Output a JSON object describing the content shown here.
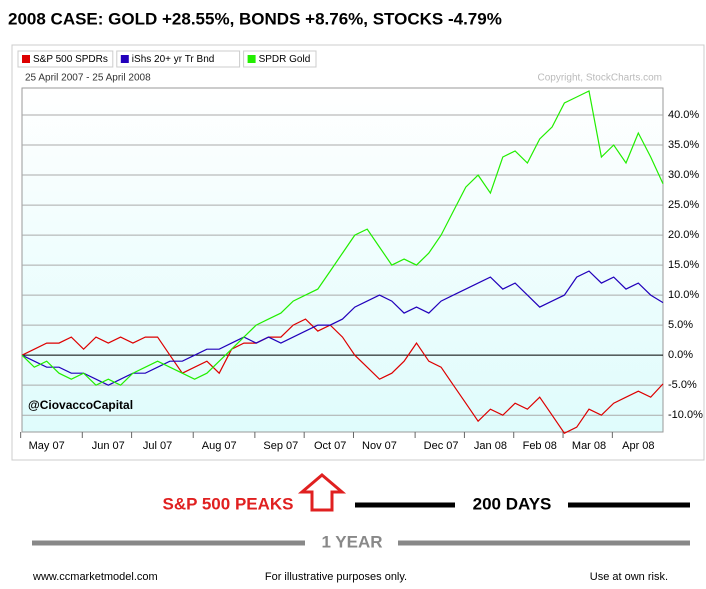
{
  "chart_data": {
    "type": "line",
    "title": "2008 CASE:   GOLD +28.55%, BONDS +8.76%, STOCKS -4.79%",
    "subtitle": "25 April 2007 - 25 April 2008",
    "credit": "Copyright, StockCharts.com",
    "watermark": "@CiovaccoCapital",
    "annotations": [
      "S&P 500 PEAKS",
      "200 DAYS",
      "1 YEAR"
    ],
    "footer": [
      "www.ccmarketmodel.com",
      "For illustrative purposes only.",
      "Use at own risk."
    ],
    "categories": [
      null,
      null,
      "May 07",
      null,
      null,
      null,
      null,
      "Jun 07",
      null,
      null,
      null,
      "Jul 07",
      null,
      null,
      null,
      null,
      "Aug 07",
      null,
      null,
      null,
      null,
      "Sep 07",
      null,
      null,
      null,
      "Oct 07",
      null,
      null,
      null,
      "Nov 07",
      null,
      null,
      null,
      null,
      "Dec 07",
      null,
      null,
      null,
      "Jan 08",
      null,
      null,
      null,
      "Feb 08",
      null,
      null,
      null,
      "Mar 08",
      null,
      null,
      null,
      "Apr 08",
      null,
      null
    ],
    "series": [
      {
        "name": "S&P 500 SPDRs",
        "color": "#dd0000",
        "values": [
          0,
          1,
          2,
          2,
          3,
          1,
          3,
          2,
          3,
          2,
          3,
          3,
          0,
          -3,
          -2,
          -1,
          -3,
          1,
          2,
          2,
          3,
          3,
          5,
          6,
          4,
          5,
          3,
          0,
          -2,
          -4,
          -3,
          -1,
          2,
          -1,
          -2,
          -5,
          -8,
          -11,
          -9,
          -10,
          -8,
          -9,
          -7,
          -10,
          -13,
          -12,
          -9,
          -10,
          -8,
          -7,
          -6,
          -7,
          -4.79
        ]
      },
      {
        "name": "iShs 20+ yr Tr Bnd",
        "color": "#2200bb",
        "values": [
          0,
          -1,
          -2,
          -2,
          -3,
          -3,
          -4,
          -5,
          -4,
          -3,
          -3,
          -2,
          -1,
          -1,
          0,
          1,
          1,
          2,
          3,
          2,
          3,
          2,
          3,
          4,
          5,
          5,
          6,
          8,
          9,
          10,
          9,
          7,
          8,
          7,
          9,
          10,
          11,
          12,
          13,
          11,
          12,
          10,
          8,
          9,
          10,
          13,
          14,
          12,
          13,
          11,
          12,
          10,
          8.76
        ]
      },
      {
        "name": "SPDR Gold",
        "color": "#22ee00",
        "values": [
          0,
          -2,
          -1,
          -3,
          -4,
          -3,
          -5,
          -4,
          -5,
          -3,
          -2,
          -1,
          -2,
          -3,
          -4,
          -3,
          -1,
          1,
          3,
          5,
          6,
          7,
          9,
          10,
          11,
          14,
          17,
          20,
          21,
          18,
          15,
          16,
          15,
          17,
          20,
          24,
          28,
          30,
          27,
          33,
          34,
          32,
          36,
          38,
          42,
          43,
          44,
          33,
          35,
          32,
          37,
          33,
          28.55
        ]
      }
    ],
    "ylim": [
      -12.8,
      44.5
    ],
    "yticks": [
      {
        "value": -10,
        "label": "-10.0%"
      },
      {
        "value": -5,
        "label": "-5.0%"
      },
      {
        "value": 0,
        "label": "0.0%"
      },
      {
        "value": 5,
        "label": "5.0%"
      },
      {
        "value": 10,
        "label": "10.0%"
      },
      {
        "value": 15,
        "label": "15.0%"
      },
      {
        "value": 20,
        "label": "20.0%"
      },
      {
        "value": 25,
        "label": "25.0%"
      },
      {
        "value": 30,
        "label": "30.0%"
      },
      {
        "value": 35,
        "label": "35.0%"
      },
      {
        "value": 40,
        "label": "40.0%"
      }
    ],
    "grid": true
  }
}
